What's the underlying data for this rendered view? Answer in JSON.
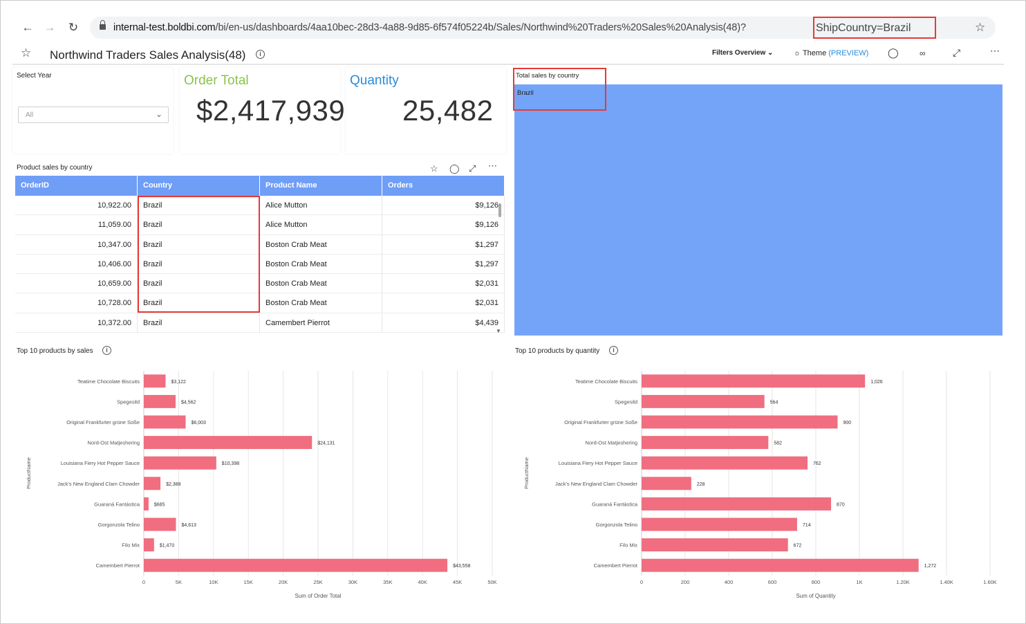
{
  "browser": {
    "url_host": "internal-test.boldbi.com",
    "url_path": "/bi/en-us/dashboards/4aa10bec-28d3-4a88-9d85-6f574f05224b/Sales/Northwind%20Traders%20Sales%20Analysis(48)?",
    "url_query": "ShipCountry=Brazil"
  },
  "header": {
    "title": "Northwind Traders Sales Analysis(48)",
    "filters_overview": "Filters Overview",
    "theme_label": "Theme",
    "preview_label": "(PREVIEW)"
  },
  "filter_year": {
    "title": "Select Year",
    "selected": "All"
  },
  "kpi": {
    "order_total_title": "Order Total",
    "order_total_value": "$2,417,939",
    "quantity_title": "Quantity",
    "quantity_value": "25,482"
  },
  "country_filter": {
    "title": "Total sales by country",
    "item": "Brazil"
  },
  "colors": {
    "header_blue": "#6f9ef7",
    "bar_pink": "#f06e7f",
    "order_green": "#8bc34a",
    "quantity_blue": "#2a8bd8",
    "highlight_red": "#e53935",
    "tile_blue": "#74a4f8"
  },
  "table": {
    "title": "Product sales by country",
    "columns": [
      "OrderID",
      "Country",
      "Product Name",
      "Orders"
    ],
    "rows": [
      [
        "10,922.00",
        "Brazil",
        "Alice Mutton",
        "$9,126"
      ],
      [
        "11,059.00",
        "Brazil",
        "Alice Mutton",
        "$9,126"
      ],
      [
        "10,347.00",
        "Brazil",
        "Boston Crab Meat",
        "$1,297"
      ],
      [
        "10,406.00",
        "Brazil",
        "Boston Crab Meat",
        "$1,297"
      ],
      [
        "10,659.00",
        "Brazil",
        "Boston Crab Meat",
        "$2,031"
      ],
      [
        "10,728.00",
        "Brazil",
        "Boston Crab Meat",
        "$2,031"
      ],
      [
        "10,372.00",
        "Brazil",
        "Camembert Pierrot",
        "$4,439"
      ]
    ]
  },
  "chart_data": [
    {
      "type": "bar",
      "orientation": "horizontal",
      "title": "Top 10 products by sales",
      "xlabel": "Sum of Order Total",
      "ylabel": "ProductName",
      "categories": [
        "Teatime Chocolate Biscuits",
        "Spegesild",
        "Original Frankfurter grüne Soße",
        "Nord-Ost Matjeshering",
        "Louisiana Fiery Hot Pepper Sauce",
        "Jack's New England Clam Chowder",
        "Guaraná Fantástica",
        "Gorgonzola Telino",
        "Filo Mix",
        "Camembert Pierrot"
      ],
      "values": [
        3122,
        4562,
        6003,
        24131,
        10398,
        2388,
        685,
        4613,
        1470,
        43558
      ],
      "data_labels": [
        "$3,122",
        "$4,562",
        "$6,003",
        "$24,131",
        "$10,398",
        "$2,388",
        "$685",
        "$4,613",
        "$1,470",
        "$43,558"
      ],
      "xlim": [
        0,
        50000
      ],
      "xticks": [
        "0",
        "5K",
        "10K",
        "15K",
        "20K",
        "25K",
        "30K",
        "35K",
        "40K",
        "45K",
        "50K"
      ],
      "grid": true
    },
    {
      "type": "bar",
      "orientation": "horizontal",
      "title": "Top 10 products by quantity",
      "xlabel": "Sum of Quantity",
      "ylabel": "ProductName",
      "categories": [
        "Teatime Chocolate Biscuits",
        "Spegesild",
        "Original Frankfurter grüne Soße",
        "Nord-Ost Matjeshering",
        "Louisiana Fiery Hot Pepper Sauce",
        "Jack's New England Clam Chowder",
        "Guaraná Fantástica",
        "Gorgonzola Telino",
        "Filo Mix",
        "Camembert Pierrot"
      ],
      "values": [
        1026,
        564,
        900,
        582,
        762,
        228,
        870,
        714,
        672,
        1272
      ],
      "data_labels": [
        "1,026",
        "564",
        "900",
        "582",
        "762",
        "228",
        "870",
        "714",
        "672",
        "1,272"
      ],
      "xlim": [
        0,
        1600
      ],
      "xticks": [
        "0",
        "200",
        "400",
        "600",
        "800",
        "1K",
        "1.20K",
        "1.40K",
        "1.60K"
      ],
      "grid": true
    }
  ]
}
